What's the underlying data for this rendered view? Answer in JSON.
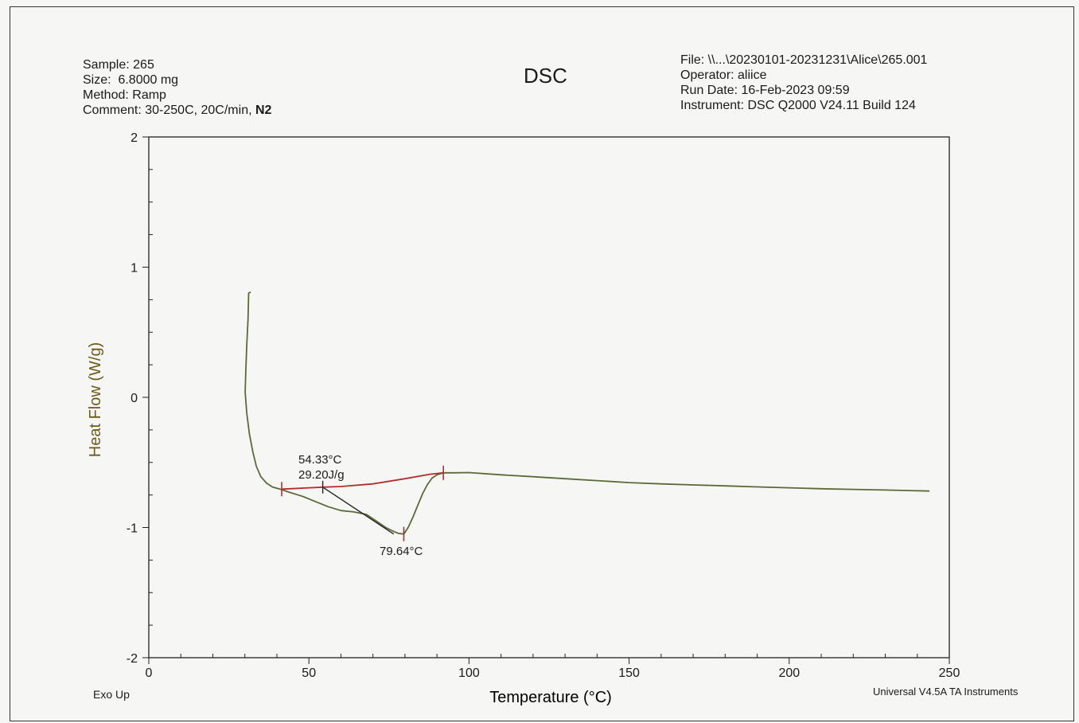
{
  "header": {
    "sample": "Sample: 265",
    "size": "Size:  6.8000 mg",
    "method": "Method: Ramp",
    "comment_prefix": "Comment: 30-250C, 20C/min, ",
    "comment_bold": "N2",
    "file": "File: \\\\...\\20230101-20231231\\Alice\\265.001",
    "operator": "Operator: aliice",
    "run_date": "Run Date: 16-Feb-2023 09:59",
    "instrument": "Instrument: DSC Q2000 V24.11 Build 124"
  },
  "footer": {
    "exo_up": "Exo Up",
    "software": "Universal V4.5A TA Instruments"
  },
  "colors": {
    "curve": "#5a6a3a",
    "integration": "#b03030",
    "ylabel": "#6b5a1a",
    "axis": "#222222"
  },
  "chart_data": {
    "type": "line",
    "title": "DSC",
    "xlabel": "Temperature (°C)",
    "ylabel": "Heat Flow (W/g)",
    "xlim": [
      0,
      250
    ],
    "ylim": [
      -2,
      2
    ],
    "x_ticks": [
      0,
      50,
      100,
      150,
      200,
      250
    ],
    "y_ticks": [
      -2,
      -1,
      0,
      1,
      2
    ],
    "grid": false,
    "series": [
      {
        "x": [
          31.8,
          31.2,
          31.0,
          30.6,
          30.3,
          30.1,
          30.6,
          31.4,
          32.5,
          33.6,
          35.0,
          36.8,
          38.7,
          41.0,
          44.0,
          48.0,
          52.0,
          56.0,
          60.0,
          64.0,
          68.0,
          71.0,
          74.0,
          76.5,
          78.0,
          79.64,
          81.0,
          82.5,
          84.0,
          85.5,
          87.0,
          88.5,
          90.0,
          92.0,
          95.0,
          100.0,
          110.0,
          120.0,
          130.0,
          140.0,
          150.0,
          160.0,
          170.0,
          180.0,
          190.0,
          200.0,
          210.0,
          220.0,
          230.0,
          243.8
        ],
        "y": [
          0.81,
          0.8,
          0.6,
          0.4,
          0.2,
          0.04,
          -0.12,
          -0.28,
          -0.42,
          -0.53,
          -0.61,
          -0.66,
          -0.69,
          -0.705,
          -0.73,
          -0.76,
          -0.8,
          -0.84,
          -0.87,
          -0.88,
          -0.9,
          -0.95,
          -1.0,
          -1.03,
          -1.045,
          -1.05,
          -1.0,
          -0.92,
          -0.83,
          -0.74,
          -0.67,
          -0.62,
          -0.595,
          -0.58,
          -0.58,
          -0.578,
          -0.595,
          -0.61,
          -0.625,
          -0.64,
          -0.655,
          -0.665,
          -0.673,
          -0.68,
          -0.688,
          -0.695,
          -0.702,
          -0.707,
          -0.712,
          -0.72
        ]
      }
    ],
    "integration": {
      "x": [
        41.5,
        54.33,
        60.0,
        70.0,
        80.0,
        88.0,
        92.0
      ],
      "y": [
        -0.705,
        -0.69,
        -0.685,
        -0.665,
        -0.625,
        -0.59,
        -0.58
      ]
    },
    "onset_line": {
      "x": [
        54.33,
        76.5
      ],
      "y": [
        -0.69,
        -1.05
      ]
    },
    "markers": [
      {
        "x": 41.5,
        "y": -0.705
      },
      {
        "x": 92.0,
        "y": -0.58
      },
      {
        "x": 79.64,
        "y": -1.05
      }
    ],
    "onset_marker": {
      "x": 54.33,
      "y": -0.69
    },
    "annotations": {
      "onset_temp": "54.33°C",
      "enthalpy": "29.20J/g",
      "peak_temp": "79.64°C"
    }
  }
}
